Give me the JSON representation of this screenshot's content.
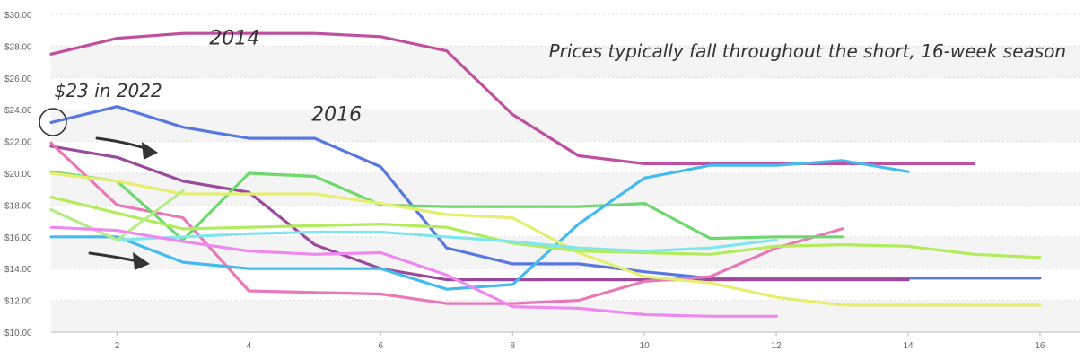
{
  "chart_data": {
    "type": "line",
    "title": "",
    "xlabel": "",
    "ylabel": "",
    "xlim": [
      1,
      16.6
    ],
    "ylim": [
      10,
      30
    ],
    "x_ticks": [
      2,
      4,
      6,
      8,
      10,
      12,
      14,
      16
    ],
    "y_ticks": [
      10,
      12,
      14,
      16,
      18,
      20,
      22,
      24,
      26,
      28,
      30
    ],
    "y_tick_labels": [
      "$10.00",
      "$12.00",
      "$14.00",
      "$16.00",
      "$18.00",
      "$20.00",
      "$22.00",
      "$24.00",
      "$26.00",
      "$28.00",
      "$30.00"
    ],
    "grid": true,
    "series": [
      {
        "color": "#c0509f",
        "x": [
          1,
          2,
          3,
          4,
          5,
          6,
          7,
          8,
          9,
          10,
          11,
          12,
          13,
          14,
          15
        ],
        "values": [
          27.5,
          28.5,
          28.8,
          28.8,
          28.8,
          28.6,
          27.7,
          23.7,
          21.1,
          20.6,
          20.6,
          20.6,
          20.6,
          20.6,
          20.6
        ]
      },
      {
        "color": "#5878e0",
        "x": [
          1,
          2,
          3,
          4,
          5,
          6,
          7,
          8,
          9,
          10,
          11,
          12,
          13,
          14,
          15,
          16
        ],
        "values": [
          23.2,
          24.2,
          22.9,
          22.2,
          22.2,
          20.4,
          15.3,
          14.3,
          14.3,
          13.8,
          13.4,
          13.4,
          13.4,
          13.4,
          13.4,
          13.4
        ]
      },
      {
        "color": "#9a4a9a",
        "x": [
          1,
          2,
          3,
          4,
          5,
          6,
          7,
          8,
          9,
          10,
          11,
          12,
          13,
          14
        ],
        "values": [
          21.7,
          21.0,
          19.5,
          18.8,
          15.5,
          14.0,
          13.3,
          13.3,
          13.3,
          13.3,
          13.3,
          13.3,
          13.3,
          13.3
        ]
      },
      {
        "color": "#e878b8",
        "x": [
          1,
          2,
          3,
          4,
          5,
          6,
          7,
          8,
          9,
          10,
          11,
          12,
          13
        ],
        "values": [
          21.9,
          18.0,
          17.2,
          12.6,
          12.5,
          12.4,
          11.8,
          11.8,
          12.0,
          13.2,
          13.5,
          15.3,
          16.5
        ]
      },
      {
        "color": "#6ed86e",
        "x": [
          1,
          2,
          3,
          4,
          5,
          6,
          7,
          8,
          9,
          10,
          11,
          12,
          13
        ],
        "values": [
          20.1,
          19.5,
          15.8,
          20.0,
          19.8,
          18.0,
          17.9,
          17.9,
          17.9,
          18.1,
          15.9,
          16.0,
          16.0
        ]
      },
      {
        "color": "#44bbee",
        "x": [
          1,
          2,
          3,
          4,
          5,
          6,
          7,
          8,
          9,
          10,
          11,
          12,
          13,
          14
        ],
        "values": [
          16.0,
          16.0,
          14.4,
          14.0,
          14.0,
          14.0,
          12.7,
          13.0,
          16.8,
          19.7,
          20.5,
          20.5,
          20.8,
          20.1
        ]
      },
      {
        "color": "#e6ee70",
        "x": [
          1,
          2,
          3,
          4,
          5,
          6,
          7,
          8,
          9,
          10,
          11,
          12,
          13,
          14,
          15,
          16
        ],
        "values": [
          20.0,
          19.5,
          18.7,
          18.7,
          18.7,
          18.1,
          17.4,
          17.2,
          15.0,
          13.5,
          13.1,
          12.2,
          11.7,
          11.7,
          11.7,
          11.7
        ]
      },
      {
        "color": "#b2ec5a",
        "x": [
          1,
          2,
          3,
          4,
          5,
          6,
          7,
          8,
          9,
          10,
          11,
          12,
          13,
          14,
          15,
          16
        ],
        "values": [
          18.5,
          17.5,
          16.5,
          16.6,
          16.7,
          16.8,
          16.6,
          15.6,
          15.1,
          15.0,
          14.9,
          15.4,
          15.5,
          15.4,
          14.9,
          14.7
        ]
      },
      {
        "color": "#80e6ee",
        "x": [
          1,
          2,
          3,
          4,
          5,
          6,
          7,
          8,
          9,
          10,
          11,
          12
        ],
        "values": [
          17.7,
          15.8,
          16.0,
          16.2,
          16.3,
          16.3,
          16.0,
          15.7,
          15.3,
          15.1,
          15.3,
          15.8
        ]
      },
      {
        "color": "#b8ec88",
        "x": [
          1,
          2,
          3
        ],
        "values": [
          17.7,
          15.8,
          18.9
        ]
      },
      {
        "color": "#ee88ee",
        "x": [
          1,
          2,
          3,
          4,
          5,
          6,
          7,
          8,
          9,
          10,
          11,
          12
        ],
        "values": [
          16.6,
          16.4,
          15.7,
          15.1,
          14.9,
          15.0,
          13.6,
          11.6,
          11.5,
          11.1,
          11.0,
          11.0
        ]
      }
    ],
    "annotations": [
      {
        "id": "2014",
        "text": "2014",
        "x": 3.4,
        "y": 28.1
      },
      {
        "id": "2016",
        "text": "2016",
        "x": 4.95,
        "y": 23.3
      },
      {
        "id": "2022",
        "text": "$23 in 2022",
        "x": 1.05,
        "y": 24.8
      },
      {
        "id": "season",
        "text": "Prices typically fall throughout the short, 16-week season",
        "x": 8.55,
        "y": 27.3
      }
    ]
  }
}
